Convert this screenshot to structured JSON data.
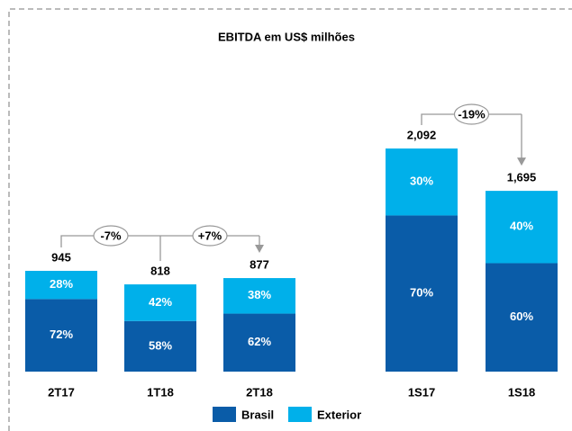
{
  "chart_data": {
    "type": "bar",
    "stacked": true,
    "title": "EBITDA  em US$ milhões",
    "categories": [
      "2T17",
      "1T18",
      "2T18",
      "1S17",
      "1S18"
    ],
    "totals": {
      "values": [
        945,
        818,
        877,
        2092,
        1695
      ],
      "value_labels": [
        "945",
        "818",
        "877",
        "2,092",
        "1,695"
      ]
    },
    "series": [
      {
        "name": "Brasil",
        "color": "#0a5ca8",
        "values": [
          72,
          58,
          62,
          70,
          60
        ],
        "value_labels": [
          "72%",
          "58%",
          "62%",
          "70%",
          "60%"
        ]
      },
      {
        "name": "Exterior",
        "color": "#00b0ea",
        "values": [
          28,
          42,
          38,
          30,
          40
        ],
        "value_labels": [
          "28%",
          "42%",
          "38%",
          "30%",
          "40%"
        ]
      }
    ],
    "annotations": [
      "-7%",
      "+7%",
      "-19%"
    ]
  }
}
